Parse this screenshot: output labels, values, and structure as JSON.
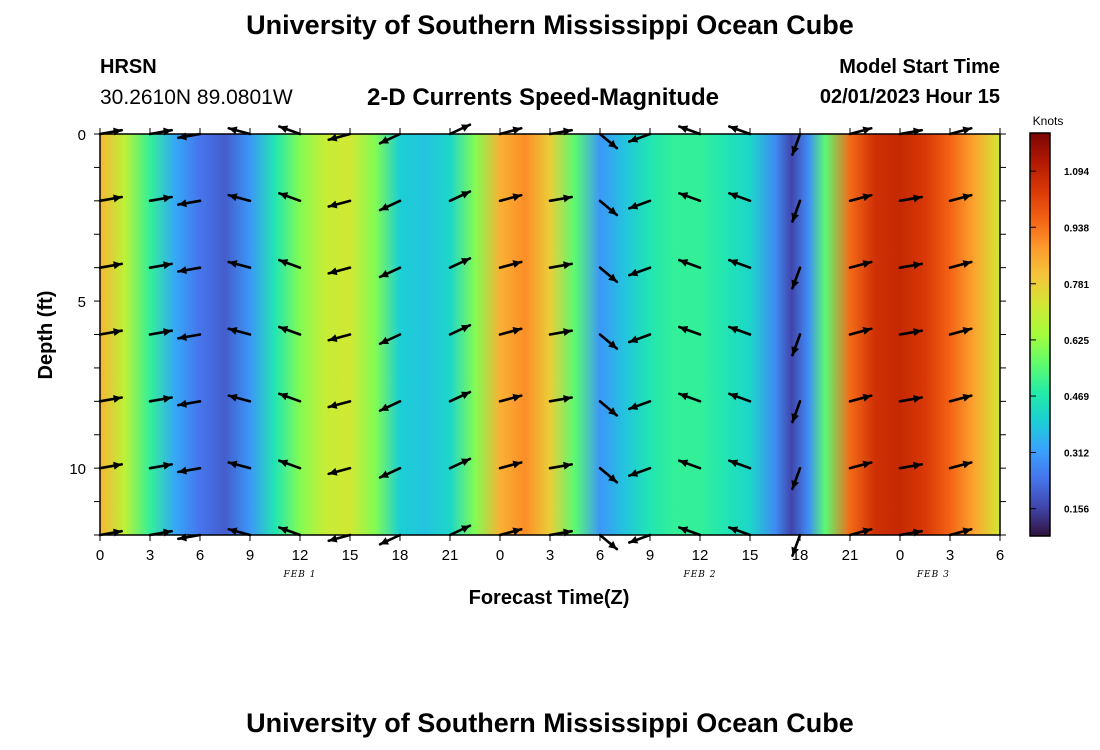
{
  "header": {
    "title": "University of Southern Mississippi Ocean Cube",
    "station": "HRSN",
    "coords": "30.2610N  89.0801W",
    "subtitle": "2-D Currents Speed-Magnitude",
    "model_start_label": "Model Start Time",
    "model_start_value": "02/01/2023 Hour 15"
  },
  "footer": {
    "title": "University of Southern Mississippi Ocean Cube"
  },
  "chart_data": {
    "type": "heatmap",
    "title": "2-D Currents Speed-Magnitude",
    "xlabel": "Forecast Time(Z)",
    "ylabel": "Depth (ft)",
    "x_ticks": [
      "0",
      "3",
      "6",
      "9",
      "12",
      "15",
      "18",
      "21",
      "0",
      "3",
      "6",
      "9",
      "12",
      "15",
      "18",
      "21",
      "0",
      "3",
      "6"
    ],
    "x_range_hours": [
      0,
      54
    ],
    "date_labels": [
      {
        "label": "FEB 1",
        "hour": 12
      },
      {
        "label": "FEB 2",
        "hour": 36
      },
      {
        "label": "FEB 3",
        "hour": 50
      }
    ],
    "y_ticks": [
      "0",
      "5",
      "10"
    ],
    "ylim": [
      0,
      12
    ],
    "colorbar": {
      "title": "Knots",
      "ticks": [
        "1.094",
        "0.938",
        "0.781",
        "0.625",
        "0.469",
        "0.312",
        "0.156"
      ],
      "range": [
        0.08,
        1.2
      ],
      "colors": [
        "#30123b",
        "#4145ab",
        "#4675ed",
        "#39a2fc",
        "#1bcfd4",
        "#24eca6",
        "#61fc6c",
        "#a4fc3b",
        "#d1e834",
        "#f3c63a",
        "#fe9b2d",
        "#f36315",
        "#d93806",
        "#b11901",
        "#7a0402"
      ]
    },
    "speed_profile": [
      {
        "hour": 0,
        "speed": 0.83
      },
      {
        "hour": 1.5,
        "speed": 0.68
      },
      {
        "hour": 3,
        "speed": 0.5
      },
      {
        "hour": 4.5,
        "speed": 0.33
      },
      {
        "hour": 6,
        "speed": 0.24
      },
      {
        "hour": 7.5,
        "speed": 0.2
      },
      {
        "hour": 9,
        "speed": 0.3
      },
      {
        "hour": 10.5,
        "speed": 0.46
      },
      {
        "hour": 12,
        "speed": 0.6
      },
      {
        "hour": 13.5,
        "speed": 0.7
      },
      {
        "hour": 15,
        "speed": 0.72
      },
      {
        "hour": 16.5,
        "speed": 0.6
      },
      {
        "hour": 18,
        "speed": 0.4
      },
      {
        "hour": 19.5,
        "speed": 0.38
      },
      {
        "hour": 21,
        "speed": 0.42
      },
      {
        "hour": 22.5,
        "speed": 0.6
      },
      {
        "hour": 24,
        "speed": 0.84
      },
      {
        "hour": 25.5,
        "speed": 0.9
      },
      {
        "hour": 27,
        "speed": 0.78
      },
      {
        "hour": 28.5,
        "speed": 0.55
      },
      {
        "hour": 30,
        "speed": 0.3
      },
      {
        "hour": 31.5,
        "speed": 0.38
      },
      {
        "hour": 33,
        "speed": 0.46
      },
      {
        "hour": 34.5,
        "speed": 0.5
      },
      {
        "hour": 36,
        "speed": 0.5
      },
      {
        "hour": 37.5,
        "speed": 0.46
      },
      {
        "hour": 39,
        "speed": 0.42
      },
      {
        "hour": 40.5,
        "speed": 0.28
      },
      {
        "hour": 41.5,
        "speed": 0.16
      },
      {
        "hour": 42.5,
        "speed": 0.28
      },
      {
        "hour": 43.5,
        "speed": 0.55
      },
      {
        "hour": 45,
        "speed": 0.95
      },
      {
        "hour": 46.5,
        "speed": 1.06
      },
      {
        "hour": 48,
        "speed": 1.08
      },
      {
        "hour": 49.5,
        "speed": 1.04
      },
      {
        "hour": 51,
        "speed": 0.96
      },
      {
        "hour": 52.5,
        "speed": 0.86
      },
      {
        "hour": 54,
        "speed": 0.72
      }
    ],
    "vector_hours": [
      0,
      3,
      6,
      9,
      12,
      15,
      18,
      21,
      24,
      27,
      30,
      33,
      36,
      39,
      42,
      45,
      48,
      51
    ],
    "vector_depths_ft": [
      0,
      2,
      4,
      6,
      8,
      10,
      12
    ],
    "vector_directions_deg": [
      10,
      10,
      190,
      165,
      160,
      195,
      205,
      25,
      15,
      10,
      320,
      200,
      160,
      160,
      250,
      15,
      10,
      15
    ],
    "speed_units": "Knots"
  }
}
